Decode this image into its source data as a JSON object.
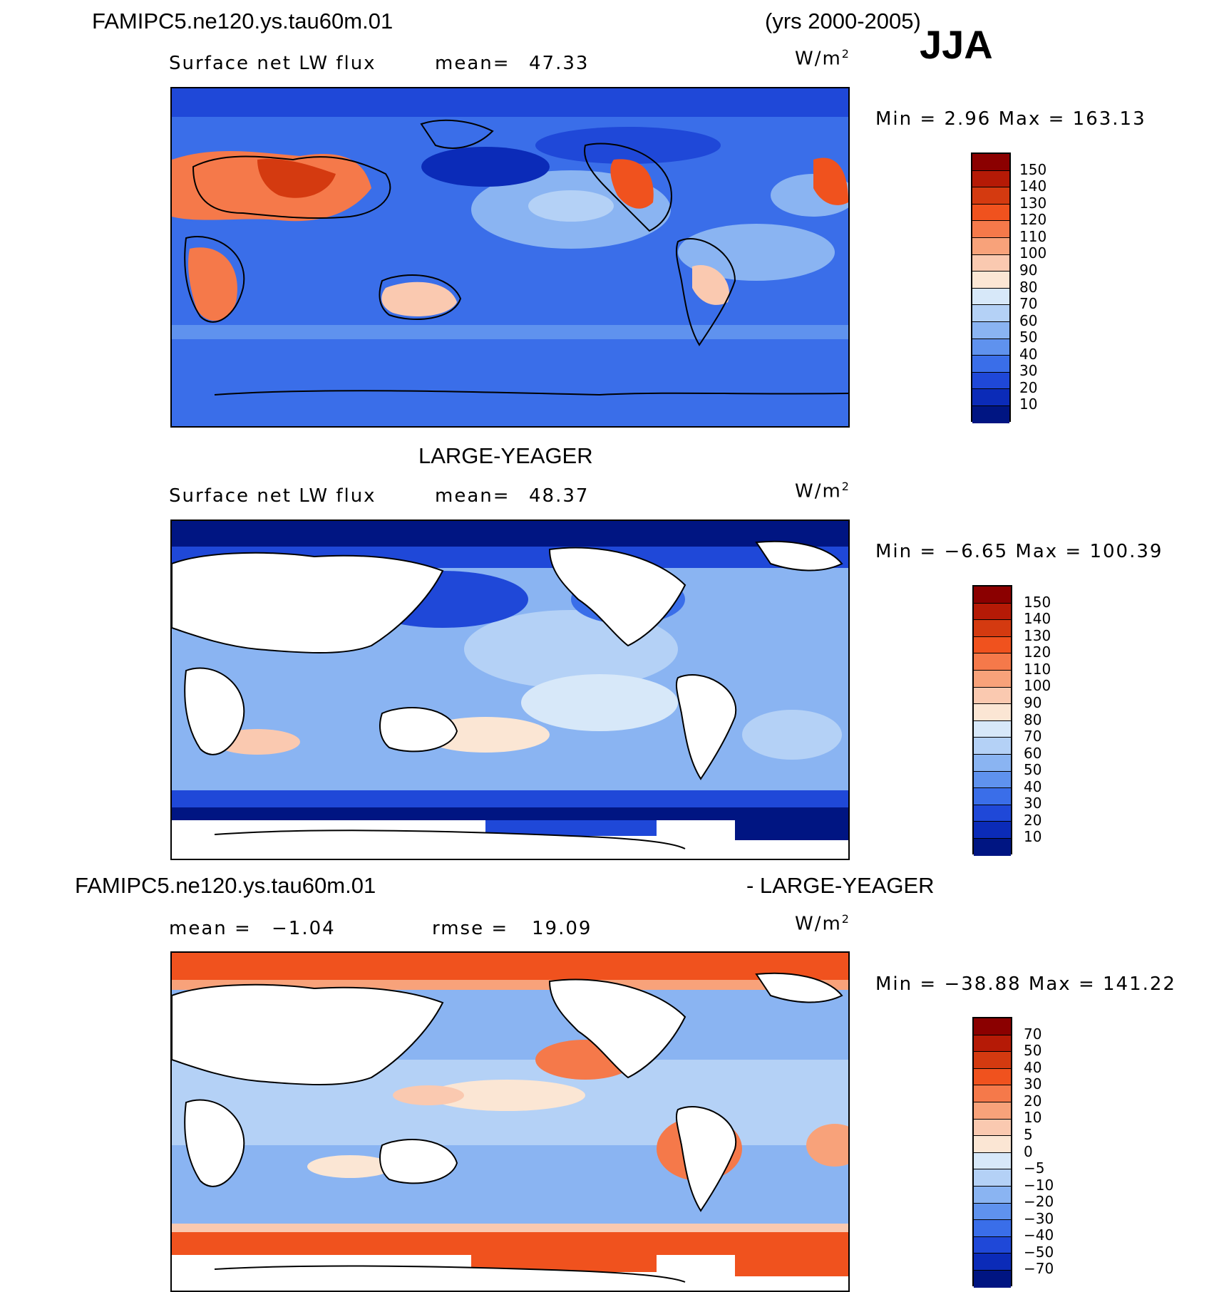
{
  "header": {
    "case_name": "FAMIPC5.ne120.ys.tau60m.01",
    "years": "(yrs 2000-2005)",
    "season": "JJA"
  },
  "panels": [
    {
      "variable": "Surface net LW flux",
      "mean_label": "mean=",
      "mean_value": "47.33",
      "units_base": "W/m",
      "units_exp": "2",
      "range_text": "Min =    2.96 Max = 163.13",
      "colorbar_labels": [
        "150",
        "140",
        "130",
        "120",
        "110",
        "100",
        "90",
        "80",
        "70",
        "60",
        "50",
        "40",
        "30",
        "20",
        "10"
      ]
    },
    {
      "title": "LARGE-YEAGER",
      "variable": "Surface net LW flux",
      "mean_label": "mean=",
      "mean_value": "48.37",
      "units_base": "W/m",
      "units_exp": "2",
      "range_text": "Min =  −6.65 Max = 100.39",
      "colorbar_labels": [
        "150",
        "140",
        "130",
        "120",
        "110",
        "100",
        "90",
        "80",
        "70",
        "60",
        "50",
        "40",
        "30",
        "20",
        "10"
      ]
    },
    {
      "title_left": "FAMIPC5.ne120.ys.tau60m.01",
      "title_right": "- LARGE-YEAGER",
      "mean_label": "mean =",
      "mean_value": "−1.04",
      "rmse_label": "rmse =",
      "rmse_value": "19.09",
      "units_base": "W/m",
      "units_exp": "2",
      "range_text": "Min = −38.88 Max = 141.22",
      "colorbar_labels": [
        "70",
        "50",
        "40",
        "30",
        "20",
        "10",
        "5",
        "0",
        "−5",
        "−10",
        "−20",
        "−30",
        "−40",
        "−50",
        "−70"
      ]
    }
  ],
  "colors": {
    "flux_scale": [
      "#8b0000",
      "#b51a06",
      "#d43a10",
      "#f0521e",
      "#f5794a",
      "#f8a27a",
      "#fac9b0",
      "#fbe6d4",
      "#d7e8f9",
      "#b4d1f6",
      "#8ab4f2",
      "#5f92ee",
      "#3a6ee9",
      "#1f48d8",
      "#0b2bb8",
      "#001582"
    ],
    "diff_scale": [
      "#8b0000",
      "#b51a06",
      "#d43a10",
      "#f0521e",
      "#f5794a",
      "#f8a27a",
      "#fac9b0",
      "#fbe6d4",
      "#d7e8f9",
      "#b4d1f6",
      "#8ab4f2",
      "#5f92ee",
      "#3a6ee9",
      "#1f48d8",
      "#0b2bb8",
      "#001582"
    ]
  }
}
